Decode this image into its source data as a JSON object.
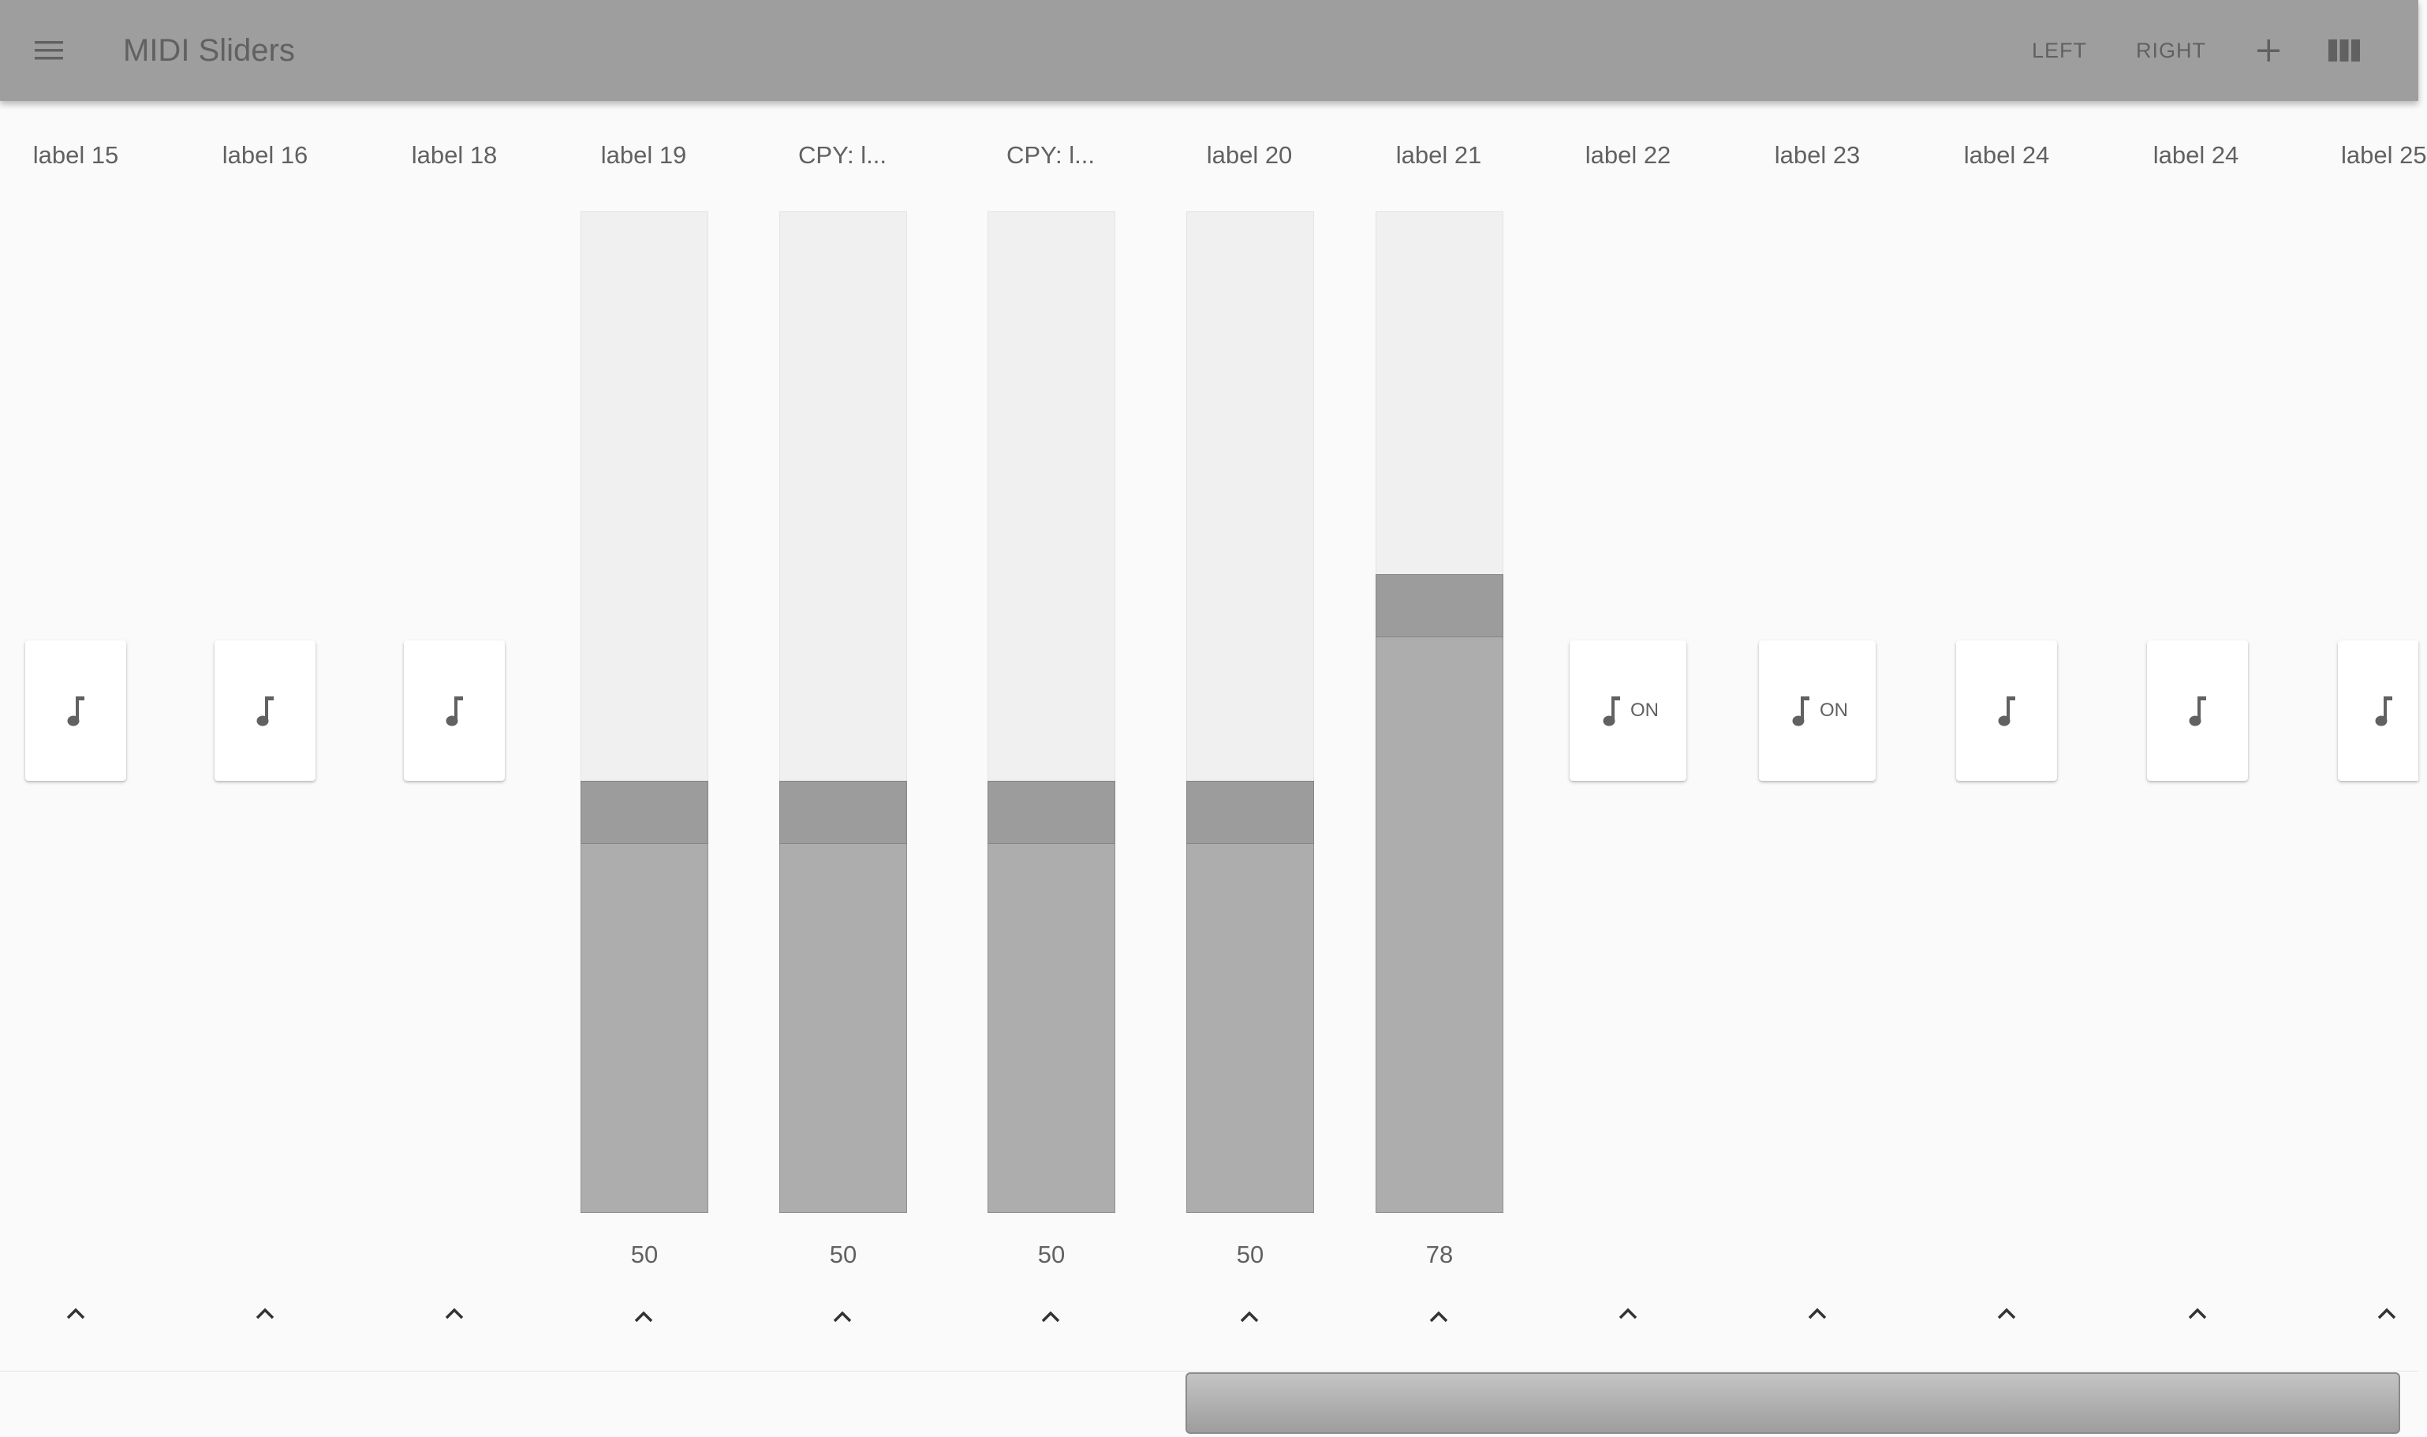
{
  "app": {
    "title": "MIDI Sliders",
    "menu_icon": "hamburger-menu-icon",
    "actions": {
      "left": "LEFT",
      "right": "RIGHT"
    },
    "add_icon": "plus-icon",
    "columns_icon": "view-columns-icon"
  },
  "controls": [
    {
      "label": "label 15",
      "type": "note"
    },
    {
      "label": "label 16",
      "type": "note"
    },
    {
      "label": "label 18",
      "type": "note"
    },
    {
      "label": "label 19",
      "type": "slider",
      "value": 50
    },
    {
      "label": "CPY: l...",
      "type": "slider",
      "value": 50
    },
    {
      "label": "CPY: l...",
      "type": "slider",
      "value": 50
    },
    {
      "label": "label 20",
      "type": "slider",
      "value": 50
    },
    {
      "label": "label 21",
      "type": "slider",
      "value": 78
    },
    {
      "label": "label 22",
      "type": "toggle",
      "state_label": "ON"
    },
    {
      "label": "label 23",
      "type": "toggle",
      "state_label": "ON"
    },
    {
      "label": "label 24",
      "type": "note"
    },
    {
      "label": "label 24",
      "type": "note"
    },
    {
      "label": "label 25",
      "type": "note"
    }
  ],
  "slider_range": [
    0,
    127
  ],
  "colors": {
    "appbar": "#9e9e9e",
    "slider_track": "#f0f0f0",
    "slider_fill": "#adadad",
    "slider_thumb": "#9c9c9c"
  }
}
